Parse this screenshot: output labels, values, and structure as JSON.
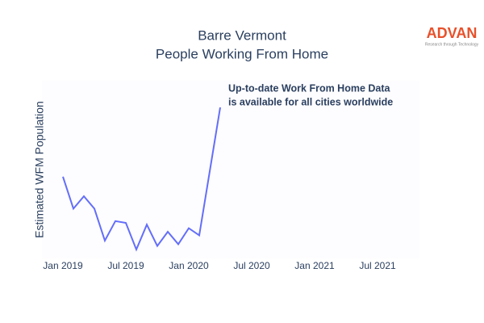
{
  "chart_data": {
    "type": "line",
    "title": "Barre Vermont",
    "subtitle": "People Working From Home",
    "y_label": "Estimated WFM Population",
    "annotation": [
      "Up-to-date Work From Home Data",
      "is available for all cities worldwide"
    ],
    "logo": {
      "name": "ADVAN",
      "tagline": "Research through Technology"
    },
    "x": [
      "2019-01",
      "2019-02",
      "2019-03",
      "2019-04",
      "2019-05",
      "2019-06",
      "2019-07",
      "2019-08",
      "2019-09",
      "2019-10",
      "2019-11",
      "2019-12",
      "2020-01",
      "2020-02",
      "2020-03",
      "2020-04"
    ],
    "series": [
      {
        "name": "Estimated WFM Population",
        "color": "#636efa",
        "values": [
          46,
          28,
          35,
          28,
          10,
          21,
          20,
          5,
          19,
          7,
          15,
          8,
          17,
          13,
          49,
          85
        ]
      }
    ],
    "xlim": [
      "2018-11",
      "2021-11"
    ],
    "xticks": [
      {
        "value": "2019-01",
        "label": "Jan 2019"
      },
      {
        "value": "2019-07",
        "label": "Jul 2019"
      },
      {
        "value": "2020-01",
        "label": "Jan 2020"
      },
      {
        "value": "2020-07",
        "label": "Jul 2020"
      },
      {
        "value": "2021-01",
        "label": "Jan 2021"
      },
      {
        "value": "2021-07",
        "label": "Jul 2021"
      }
    ],
    "ylim": [
      0,
      100
    ],
    "grid": false
  }
}
